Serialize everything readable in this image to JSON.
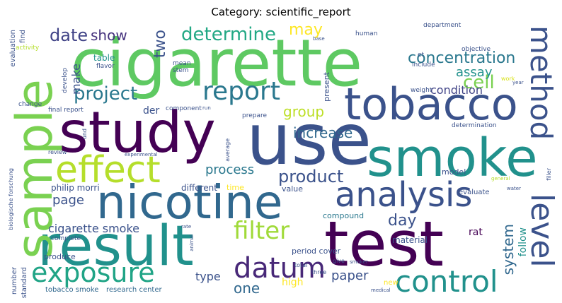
{
  "title": "Category: scientific_report",
  "words": {
    "cigarette": "cigarette",
    "use": "use",
    "study": "study",
    "smoke": "smoke",
    "tobacco": "tobacco",
    "test": "test",
    "result": "result",
    "nicotine": "nicotine",
    "sample": "sample",
    "analysis": "analysis",
    "effect": "effect",
    "exposure": "exposure",
    "report": "report",
    "control": "control",
    "method": "method",
    "datum": "datum",
    "level": "level",
    "filter": "filter",
    "concentration": "concentration",
    "determine": "determine",
    "project": "project",
    "product": "product",
    "date": "date",
    "show": "show",
    "two": "two",
    "may": "may",
    "cell": "cell",
    "assay": "assay",
    "make": "make",
    "condition": "condition",
    "group": "group",
    "increase": "increase",
    "process": "process",
    "page": "page",
    "system": "system",
    "cigarette_smoke": "cigarette smoke",
    "day": "day",
    "one": "one",
    "paper": "paper",
    "type": "type",
    "high": "high",
    "follow": "follow",
    "philip_morri": "philip morri",
    "different": "different",
    "der": "der",
    "material": "material",
    "compound": "compound",
    "rat": "rat",
    "period_cover": "period cover",
    "produce": "produce",
    "value": "value",
    "time": "time",
    "model": "model",
    "evaluate": "evaluate",
    "tobacco_smoke": "tobacco smoke",
    "research_center": "research center",
    "number": "number",
    "standard": "standard",
    "complete": "complete",
    "table": "table",
    "flavor": "flavor",
    "mean": "mean",
    "stem": "stem",
    "present": "present",
    "human": "human",
    "department": "department",
    "et": "et",
    "include": "include",
    "objective": "objective",
    "weight": "weight",
    "work": "work",
    "evaluation": "evaluation",
    "find": "find",
    "activity": "activity",
    "develop": "develop",
    "change": "change",
    "final_report": "final report",
    "component": "component",
    "prepare": "prepare",
    "determination": "determination",
    "biologische_forschung": "biologische forschung",
    "und": "und",
    "review": "review",
    "experimental": "experimental",
    "average": "average",
    "general": "general",
    "water": "water",
    "filler": "filler",
    "give": "give",
    "total": "total",
    "three": "three",
    "new": "new",
    "animal": "animal",
    "smoker": "smoker",
    "rate": "rate",
    "run": "run",
    "base": "base",
    "year": "year",
    "medical": "medical"
  }
}
